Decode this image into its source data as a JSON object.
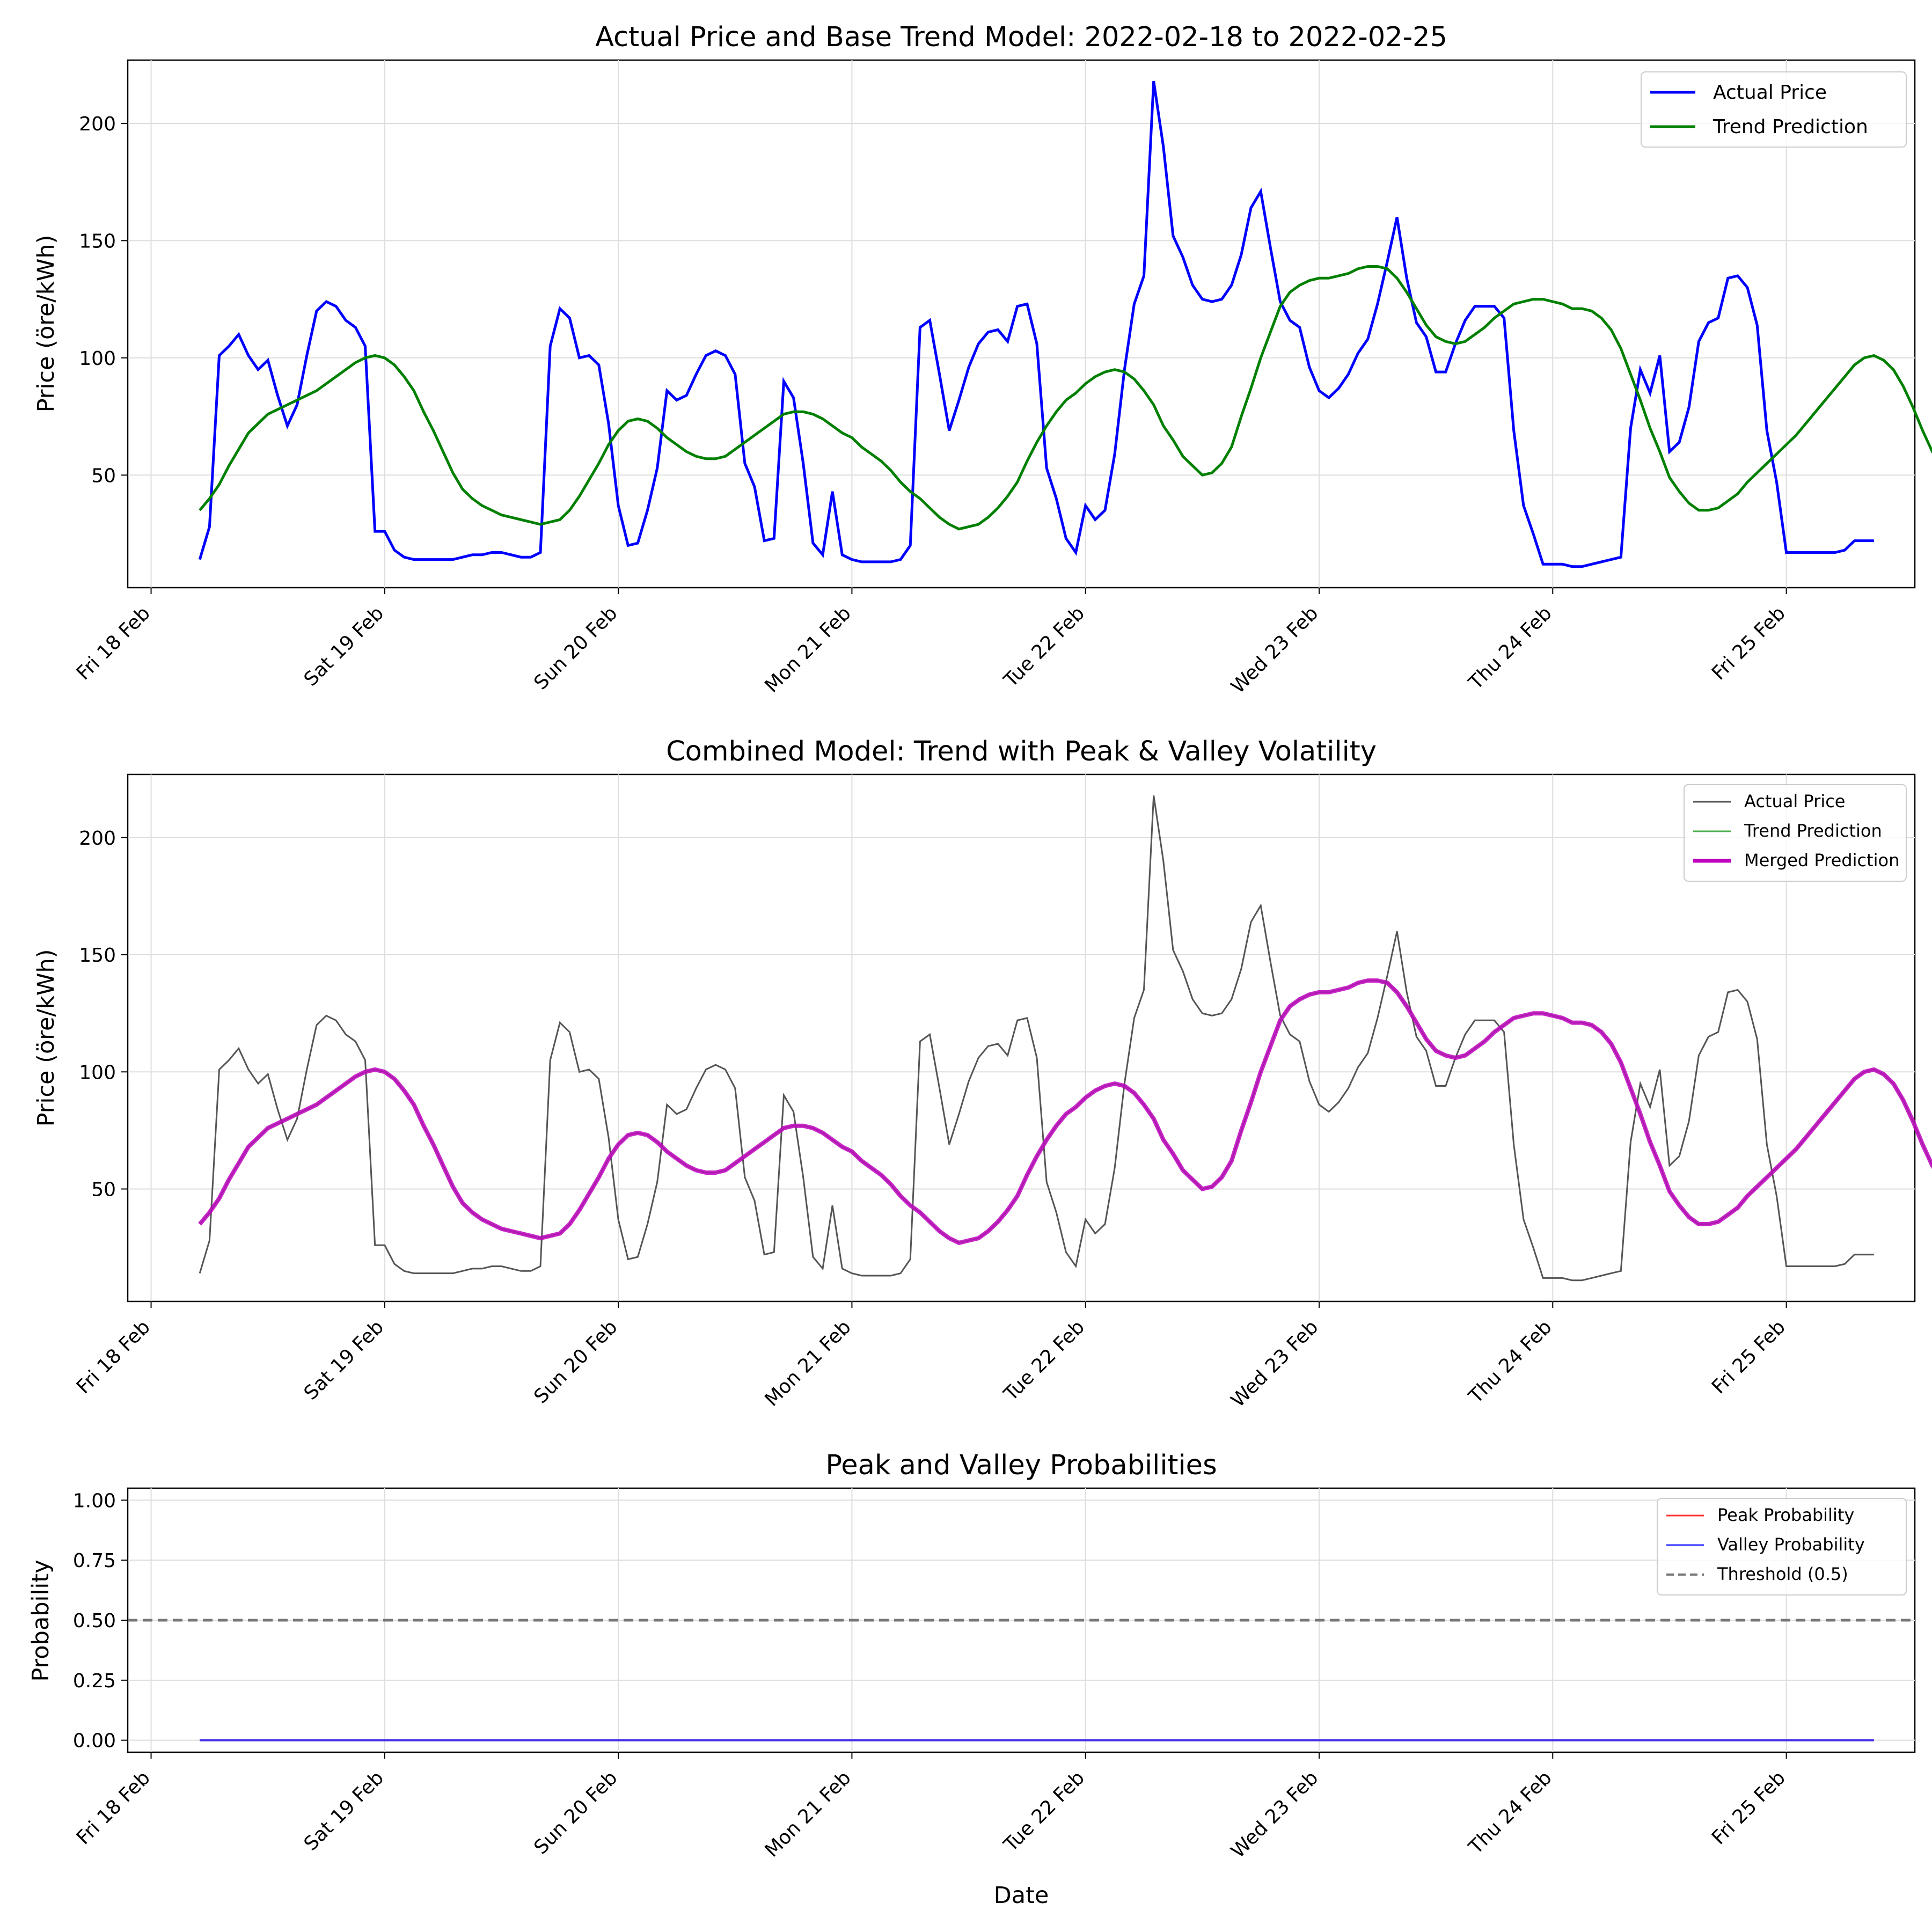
{
  "colors": {
    "actual": "#0000ff",
    "trend": "#008000",
    "actual_gray": "#555555",
    "trend_light": "#4caf4c",
    "merged": "#bf00bf",
    "peak": "#ff3333",
    "valley": "#3333ff",
    "threshold": "#777777"
  },
  "chart_data": [
    {
      "type": "line",
      "title": "Actual Price and Base Trend Model: 2022-02-18 to 2022-02-25",
      "xlabel": "",
      "ylabel": "Price (öre/kWh)",
      "x_ticks": [
        "Fri 18 Feb",
        "Sat 19 Feb",
        "Sun 20 Feb",
        "Mon 21 Feb",
        "Tue 22 Feb",
        "Wed 23 Feb",
        "Thu 24 Feb",
        "Fri 25 Feb"
      ],
      "xlim_days": [
        17.9,
        25.55
      ],
      "x_start": "2022-02-18T05:00",
      "x_step_hours": 1,
      "y_ticks": [
        50,
        100,
        150,
        200
      ],
      "ylim": [
        2,
        227
      ],
      "grid": true,
      "legend": "top-right",
      "drawstyle": "steps-post",
      "series": [
        {
          "name": "Actual Price",
          "color": "#0000ff",
          "width": 2,
          "values": [
            14,
            28,
            101,
            105,
            110,
            101,
            95,
            99,
            84,
            71,
            80,
            101,
            120,
            124,
            122,
            116,
            113,
            105,
            26,
            26,
            18,
            15,
            14,
            14,
            14,
            14,
            14,
            15,
            16,
            16,
            17,
            17,
            16,
            15,
            15,
            17,
            105,
            121,
            117,
            100,
            101,
            97,
            72,
            37,
            20,
            21,
            35,
            53,
            86,
            82,
            84,
            93,
            101,
            103,
            101,
            93,
            55,
            45,
            22,
            23,
            90,
            83,
            55,
            21,
            16,
            43,
            16,
            14,
            13,
            13,
            13,
            13,
            14,
            20,
            113,
            116,
            93,
            69,
            82,
            96,
            106,
            111,
            112,
            107,
            122,
            123,
            106,
            53,
            40,
            23,
            17,
            37,
            31,
            35,
            59,
            95,
            123,
            135,
            218,
            190,
            152,
            143,
            131,
            125,
            124,
            125,
            131,
            144,
            164,
            171,
            147,
            124,
            116,
            113,
            96,
            86,
            83,
            87,
            93,
            102,
            108,
            123,
            141,
            160,
            134,
            115,
            109,
            94,
            94,
            106,
            116,
            122,
            122,
            122,
            117,
            69,
            37,
            25,
            12,
            12,
            12,
            11,
            11,
            12,
            13,
            14,
            15,
            70,
            95,
            85,
            101,
            60,
            64,
            79,
            107,
            115,
            117,
            134,
            135,
            130,
            114,
            69,
            47,
            17,
            17,
            17,
            17,
            17,
            17,
            18,
            22,
            22
          ]
        },
        {
          "name": "Trend Prediction",
          "color": "#008000",
          "width": 2,
          "values": [
            35,
            40,
            46,
            54,
            61,
            68,
            72,
            76,
            78,
            80,
            82,
            84,
            86,
            89,
            92,
            95,
            98,
            100,
            101,
            100,
            97,
            92,
            86,
            77,
            69,
            60,
            51,
            44,
            40,
            37,
            35,
            33,
            32,
            31,
            30,
            29,
            30,
            31,
            35,
            41,
            48,
            55,
            63,
            69,
            73,
            74,
            73,
            70,
            66,
            63,
            60,
            58,
            57,
            57,
            58,
            61,
            64,
            67,
            70,
            73,
            76,
            77,
            77,
            76,
            74,
            71,
            68,
            66,
            62,
            59,
            56,
            52,
            47,
            43,
            40,
            36,
            32,
            29,
            27,
            28,
            29,
            32,
            36,
            41,
            47,
            56,
            64,
            71,
            77,
            82,
            85,
            89,
            92,
            94,
            95,
            94,
            91,
            86,
            80,
            71,
            65,
            58,
            54,
            50,
            51,
            55,
            62,
            75,
            87,
            100,
            111,
            122,
            128,
            131,
            133,
            134,
            134,
            135,
            136,
            138,
            139,
            139,
            138,
            134,
            128,
            121,
            114,
            109,
            107,
            106,
            107,
            110,
            113,
            117,
            120,
            123,
            124,
            125,
            125,
            124,
            123,
            121,
            121,
            120,
            117,
            112,
            104,
            93,
            82,
            70,
            60,
            49,
            43,
            38,
            35,
            35,
            36,
            39,
            42,
            47,
            51,
            55,
            59,
            63,
            67,
            72,
            77,
            82,
            87,
            92,
            97,
            100,
            101,
            99,
            95,
            88,
            79,
            69,
            60,
            54,
            51,
            51,
            52
          ]
        }
      ]
    },
    {
      "type": "line",
      "title": "Combined Model: Trend with Peak & Valley Volatility",
      "xlabel": "",
      "ylabel": "Price (öre/kWh)",
      "x_ticks": [
        "Fri 18 Feb",
        "Sat 19 Feb",
        "Sun 20 Feb",
        "Mon 21 Feb",
        "Tue 22 Feb",
        "Wed 23 Feb",
        "Thu 24 Feb",
        "Fri 25 Feb"
      ],
      "xlim_days": [
        17.9,
        25.55
      ],
      "y_ticks": [
        50,
        100,
        150,
        200
      ],
      "ylim": [
        2,
        227
      ],
      "grid": true,
      "legend": "top-right",
      "series": [
        {
          "name": "Actual Price",
          "color": "#555555",
          "width": 1.2,
          "same_as": "chart_data.0.series.0"
        },
        {
          "name": "Trend Prediction",
          "color": "#4caf4c",
          "width": 1.2,
          "same_as": "chart_data.0.series.1"
        },
        {
          "name": "Merged Prediction",
          "color": "#bf00bf",
          "width": 3,
          "note_values": "identical to Trend Prediction",
          "same_as": "chart_data.0.series.1"
        }
      ]
    },
    {
      "type": "line",
      "title": "Peak and Valley Probabilities",
      "xlabel": "Date",
      "ylabel": "Probability",
      "x_ticks": [
        "Fri 18 Feb",
        "Sat 19 Feb",
        "Sun 20 Feb",
        "Mon 21 Feb",
        "Tue 22 Feb",
        "Wed 23 Feb",
        "Thu 24 Feb",
        "Fri 25 Feb"
      ],
      "xlim_days": [
        17.9,
        25.55
      ],
      "y_ticks": [
        "0.00",
        "0.25",
        "0.50",
        "0.75",
        "1.00"
      ],
      "ylim": [
        -0.05,
        1.05
      ],
      "grid": true,
      "legend": "top-right",
      "series": [
        {
          "name": "Peak Probability",
          "color": "#ff3333",
          "value": 0.0
        },
        {
          "name": "Valley Probability",
          "color": "#3333ff",
          "value": 0.0
        },
        {
          "name": "Threshold (0.5)",
          "color": "#777777",
          "value": 0.5,
          "style": "dashed"
        }
      ]
    }
  ]
}
